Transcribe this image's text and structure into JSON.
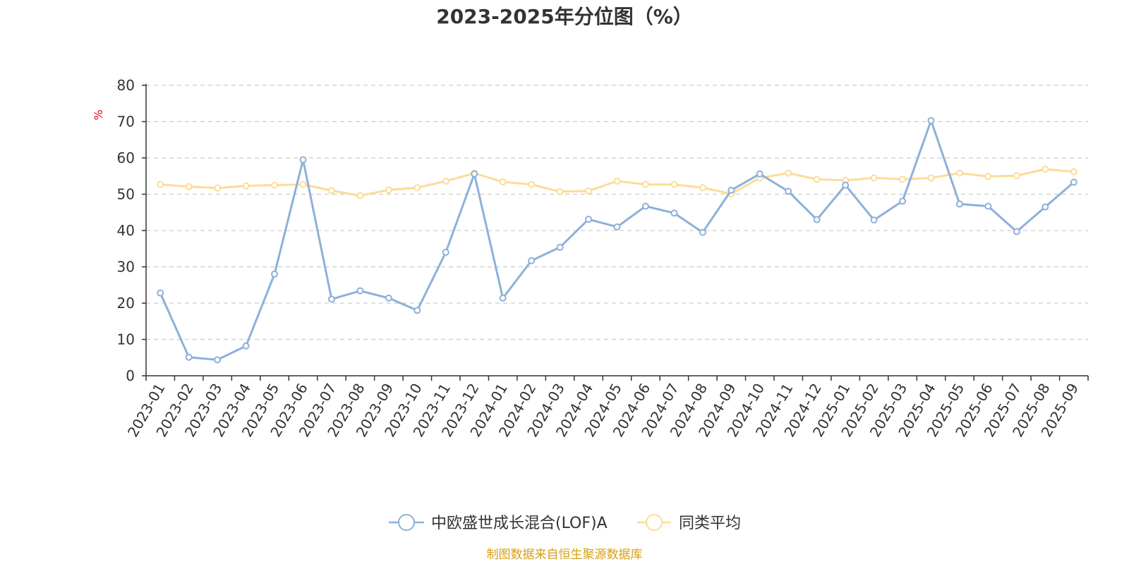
{
  "chart_data": {
    "type": "line",
    "title": "2023-2025年分位图（%）",
    "ylabel": "%",
    "ylim": [
      0,
      80
    ],
    "yticks": [
      0,
      10,
      20,
      30,
      40,
      50,
      60,
      70,
      80
    ],
    "grid": true,
    "legend_position": "bottom-center",
    "categories": [
      "2023-01",
      "2023-02",
      "2023-03",
      "2023-04",
      "2023-05",
      "2023-06",
      "2023-07",
      "2023-08",
      "2023-09",
      "2023-10",
      "2023-11",
      "2023-12",
      "2024-01",
      "2024-02",
      "2024-03",
      "2024-04",
      "2024-05",
      "2024-06",
      "2024-07",
      "2024-08",
      "2024-09",
      "2024-10",
      "2024-11",
      "2024-12",
      "2025-01",
      "2025-02",
      "2025-03",
      "2025-04",
      "2025-05",
      "2025-06",
      "2025-07",
      "2025-08",
      "2025-09"
    ],
    "series": [
      {
        "name": "中欧盛世成长混合(LOF)A",
        "color": "#8eb0da",
        "values": [
          22.8,
          5.1,
          4.4,
          8.2,
          28.0,
          59.5,
          21.1,
          23.4,
          21.4,
          18.0,
          34.0,
          55.6,
          21.4,
          31.7,
          35.4,
          43.1,
          41.0,
          46.7,
          44.8,
          39.5,
          51.1,
          55.6,
          50.8,
          43.0,
          52.5,
          42.9,
          48.1,
          70.3,
          47.3,
          46.7,
          39.7,
          46.5,
          53.3
        ]
      },
      {
        "name": "同类平均",
        "color": "#fddb99",
        "values": [
          52.7,
          52.1,
          51.7,
          52.3,
          52.5,
          52.7,
          51.0,
          49.6,
          51.2,
          51.8,
          53.6,
          55.8,
          53.4,
          52.7,
          50.7,
          50.9,
          53.6,
          52.7,
          52.7,
          51.8,
          50.1,
          54.5,
          55.8,
          54.1,
          53.8,
          54.5,
          54.1,
          54.5,
          55.8,
          54.9,
          55.1,
          56.9,
          56.2
        ]
      }
    ],
    "source": "制图数据来自恒生聚源数据库",
    "colors": {
      "axis": "#333333",
      "grid": "#cccccc",
      "unit": "#ff0000",
      "source": "#d4a017"
    }
  }
}
